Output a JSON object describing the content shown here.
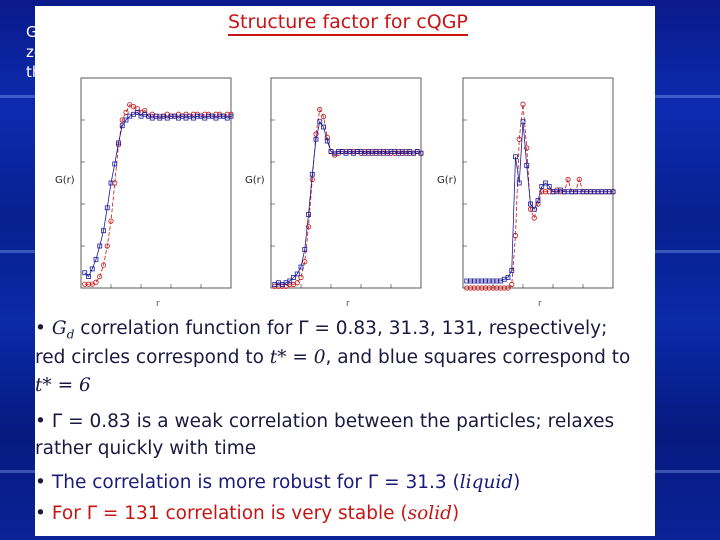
{
  "left_fragment": [
    "G",
    "ze",
    "th"
  ],
  "slide_title": "Structure factor for cQGP",
  "chart_data": [
    {
      "type": "scatter",
      "ylabel": "G(r)",
      "xlabel": "r",
      "series": [
        {
          "name": "t* = 0",
          "color": "#c81414",
          "marker": "circle",
          "x": [
            0.05,
            0.1,
            0.15,
            0.2,
            0.25,
            0.3,
            0.35,
            0.4,
            0.45,
            0.5,
            0.55,
            0.6,
            0.65,
            0.7,
            0.75,
            0.8,
            0.85,
            0.9,
            0.95,
            1.0,
            1.05,
            1.1,
            1.15,
            1.2,
            1.25,
            1.3,
            1.35,
            1.4,
            1.45,
            1.5,
            1.55,
            1.6,
            1.65,
            1.7,
            1.75,
            1.8,
            1.85,
            1.9,
            1.95,
            2.0
          ],
          "y": [
            0.02,
            0.02,
            0.02,
            0.03,
            0.06,
            0.12,
            0.22,
            0.35,
            0.55,
            0.75,
            0.88,
            0.92,
            0.96,
            0.95,
            0.94,
            0.92,
            0.93,
            0.9,
            0.91,
            0.9,
            0.9,
            0.9,
            0.91,
            0.9,
            0.9,
            0.91,
            0.9,
            0.91,
            0.9,
            0.91,
            0.91,
            0.9,
            0.91,
            0.91,
            0.9,
            0.91,
            0.91,
            0.9,
            0.91,
            0.91
          ]
        },
        {
          "name": "t* = 6",
          "color": "#1a1a9a",
          "marker": "square",
          "x": [
            0.05,
            0.1,
            0.15,
            0.2,
            0.25,
            0.3,
            0.35,
            0.4,
            0.45,
            0.5,
            0.55,
            0.6,
            0.65,
            0.7,
            0.75,
            0.8,
            0.85,
            0.9,
            0.95,
            1.0,
            1.05,
            1.1,
            1.15,
            1.2,
            1.25,
            1.3,
            1.35,
            1.4,
            1.45,
            1.5,
            1.55,
            1.6,
            1.65,
            1.7,
            1.75,
            1.8,
            1.85,
            1.9,
            1.95,
            2.0
          ],
          "y": [
            0.08,
            0.06,
            0.1,
            0.15,
            0.22,
            0.3,
            0.42,
            0.55,
            0.65,
            0.76,
            0.85,
            0.88,
            0.9,
            0.91,
            0.92,
            0.9,
            0.91,
            0.9,
            0.89,
            0.9,
            0.89,
            0.9,
            0.89,
            0.9,
            0.9,
            0.89,
            0.9,
            0.89,
            0.9,
            0.89,
            0.9,
            0.9,
            0.89,
            0.9,
            0.9,
            0.89,
            0.9,
            0.9,
            0.89,
            0.9
          ]
        }
      ],
      "xlim": [
        0,
        2.0
      ],
      "ylim": [
        0,
        1.1
      ]
    },
    {
      "type": "scatter",
      "ylabel": "G(r)",
      "xlabel": "r",
      "series": [
        {
          "name": "t* = 0",
          "color": "#c81414",
          "marker": "circle",
          "x": [
            0.05,
            0.1,
            0.15,
            0.2,
            0.25,
            0.3,
            0.35,
            0.4,
            0.45,
            0.5,
            0.55,
            0.6,
            0.65,
            0.7,
            0.75,
            0.8,
            0.85,
            0.9,
            0.95,
            1.0,
            1.05,
            1.1,
            1.15,
            1.2,
            1.25,
            1.3,
            1.35,
            1.4,
            1.45,
            1.5,
            1.55,
            1.6,
            1.65,
            1.7,
            1.75,
            1.8,
            1.85,
            1.9,
            1.95,
            2.0
          ],
          "y": [
            0.01,
            0.01,
            0.01,
            0.01,
            0.02,
            0.02,
            0.03,
            0.06,
            0.15,
            0.35,
            0.62,
            0.88,
            1.02,
            0.98,
            0.86,
            0.78,
            0.76,
            0.77,
            0.78,
            0.78,
            0.78,
            0.78,
            0.78,
            0.77,
            0.78,
            0.77,
            0.78,
            0.77,
            0.78,
            0.77,
            0.78,
            0.77,
            0.77,
            0.78,
            0.77,
            0.78,
            0.77,
            0.77,
            0.78,
            0.77
          ]
        },
        {
          "name": "t* = 6",
          "color": "#1a1a9a",
          "marker": "square",
          "x": [
            0.05,
            0.1,
            0.15,
            0.2,
            0.25,
            0.3,
            0.35,
            0.4,
            0.45,
            0.5,
            0.55,
            0.6,
            0.65,
            0.7,
            0.75,
            0.8,
            0.85,
            0.9,
            0.95,
            1.0,
            1.05,
            1.1,
            1.15,
            1.2,
            1.25,
            1.3,
            1.35,
            1.4,
            1.45,
            1.5,
            1.55,
            1.6,
            1.65,
            1.7,
            1.75,
            1.8,
            1.85,
            1.9,
            1.95,
            2.0
          ],
          "y": [
            0.02,
            0.03,
            0.02,
            0.03,
            0.04,
            0.06,
            0.08,
            0.12,
            0.22,
            0.42,
            0.65,
            0.85,
            0.95,
            0.92,
            0.84,
            0.78,
            0.77,
            0.78,
            0.78,
            0.77,
            0.78,
            0.77,
            0.78,
            0.78,
            0.77,
            0.78,
            0.77,
            0.78,
            0.77,
            0.78,
            0.77,
            0.78,
            0.78,
            0.77,
            0.78,
            0.77,
            0.78,
            0.77,
            0.78,
            0.77
          ]
        }
      ],
      "xlim": [
        0,
        2.0
      ],
      "ylim": [
        0,
        1.2
      ]
    },
    {
      "type": "scatter",
      "ylabel": "G(r)",
      "xlabel": "r",
      "series": [
        {
          "name": "t* = 0",
          "color": "#c81414",
          "marker": "circle",
          "x": [
            0.05,
            0.1,
            0.15,
            0.2,
            0.25,
            0.3,
            0.35,
            0.4,
            0.45,
            0.5,
            0.55,
            0.6,
            0.65,
            0.7,
            0.75,
            0.8,
            0.85,
            0.9,
            0.95,
            1.0,
            1.05,
            1.1,
            1.15,
            1.2,
            1.25,
            1.3,
            1.35,
            1.4,
            1.45,
            1.5,
            1.55,
            1.6,
            1.65,
            1.7,
            1.75,
            1.8,
            1.85,
            1.9,
            1.95,
            2.0
          ],
          "y": [
            0.0,
            0.0,
            0.0,
            0.0,
            0.0,
            0.0,
            0.0,
            0.0,
            0.0,
            0.0,
            0.0,
            0.0,
            0.02,
            0.3,
            0.85,
            1.05,
            0.8,
            0.45,
            0.4,
            0.48,
            0.55,
            0.55,
            0.55,
            0.55,
            0.56,
            0.55,
            0.55,
            0.62,
            0.55,
            0.55,
            0.62,
            0.55,
            0.55,
            0.55,
            0.55,
            0.55,
            0.55,
            0.55,
            0.55,
            0.55
          ]
        },
        {
          "name": "t* = 6",
          "color": "#1a1a9a",
          "marker": "square",
          "x": [
            0.05,
            0.1,
            0.15,
            0.2,
            0.25,
            0.3,
            0.35,
            0.4,
            0.45,
            0.5,
            0.55,
            0.6,
            0.65,
            0.7,
            0.75,
            0.8,
            0.85,
            0.9,
            0.95,
            1.0,
            1.05,
            1.1,
            1.15,
            1.2,
            1.25,
            1.3,
            1.35,
            1.4,
            1.45,
            1.5,
            1.55,
            1.6,
            1.65,
            1.7,
            1.75,
            1.8,
            1.85,
            1.9,
            1.95,
            2.0
          ],
          "y": [
            0.04,
            0.04,
            0.04,
            0.04,
            0.04,
            0.04,
            0.04,
            0.04,
            0.04,
            0.04,
            0.05,
            0.06,
            0.1,
            0.75,
            0.6,
            0.95,
            0.7,
            0.48,
            0.45,
            0.5,
            0.58,
            0.6,
            0.58,
            0.55,
            0.55,
            0.56,
            0.55,
            0.55,
            0.55,
            0.55,
            0.55,
            0.55,
            0.55,
            0.55,
            0.55,
            0.55,
            0.55,
            0.55,
            0.55,
            0.55
          ]
        }
      ],
      "xlim": [
        0,
        2.0
      ],
      "ylim": [
        0,
        1.2
      ]
    }
  ],
  "bullets": {
    "b1_sym": "G",
    "b1_sub": "d",
    "b1_text": " correlation function for Γ = 0.83, 31.3, 131, respectively;",
    "b1_line2a": "red circles correspond to ",
    "b1_tstar0": "t* = 0",
    "b1_line2b": ", and blue squares correspond to",
    "b1_tstar6": "t* = 6",
    "b2_line1": "Γ = 0.83 is a weak correlation between the particles; relaxes",
    "b2_line2": "rather quickly with time",
    "b3_text": "The correlation is more robust for Γ = 31.3 (",
    "b3_ital": "liquid",
    "b3_end": ")",
    "b4_text": "For Γ = 131 correlation is very stable (",
    "b4_ital": "solid",
    "b4_end": ")"
  }
}
